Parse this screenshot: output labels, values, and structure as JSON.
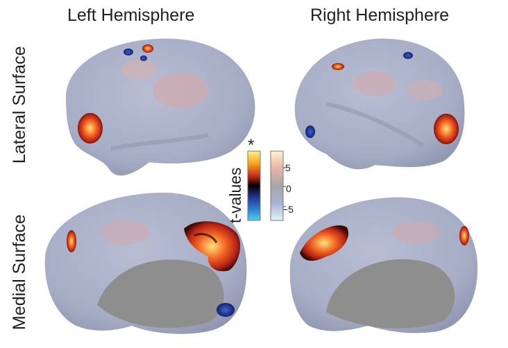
{
  "titles": {
    "left_hemisphere": "Left Hemisphere",
    "right_hemisphere": "Right Hemisphere",
    "lateral_surface": "Lateral Surface",
    "medial_surface": "Medial Surface"
  },
  "colorbar": {
    "label": "t-values",
    "significance_marker": "*",
    "ticks": [
      "5",
      "0",
      "−5"
    ],
    "significant_colormap": [
      "#39c7e8",
      "#2a3aa8",
      "#000000",
      "#b52217",
      "#f26522",
      "#fff38a"
    ],
    "nonsignificant_colormap": [
      "#d9f1fb",
      "#aab4d6",
      "#a4a4a6",
      "#e9a6a0",
      "#fff1c8"
    ]
  },
  "colors": {
    "cortex_base": "#a9afc6",
    "medial_wall": "#8e8e8e",
    "positive_cluster": "#e05a1e",
    "negative_cluster": "#2440a8"
  }
}
